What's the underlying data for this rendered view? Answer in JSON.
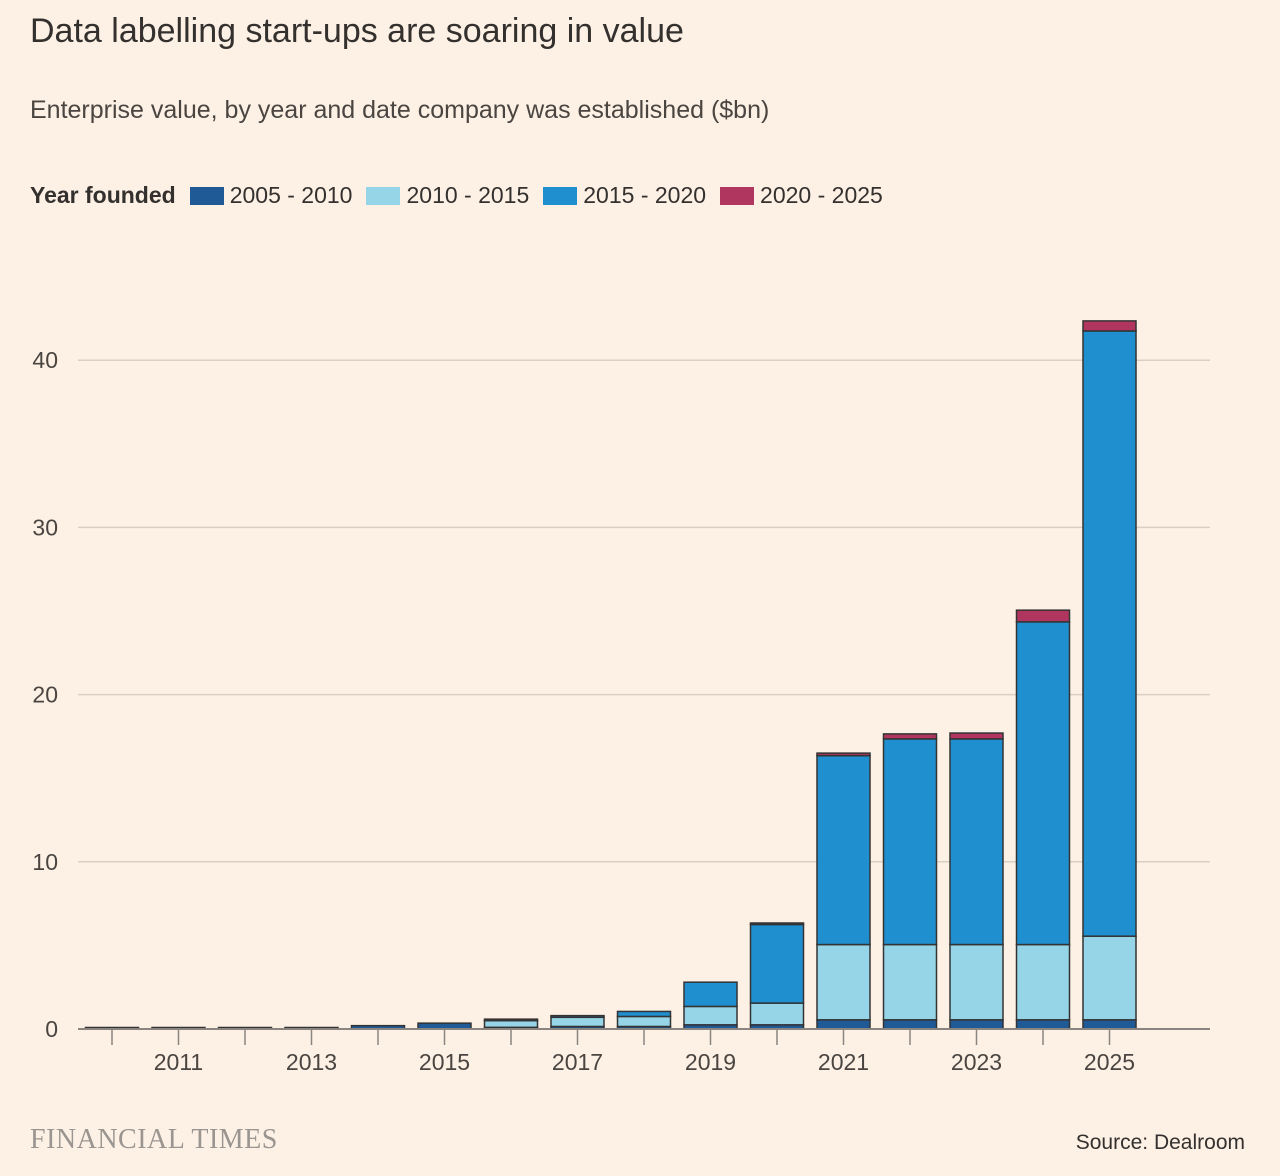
{
  "title": "Data labelling start-ups are soaring in value",
  "subtitle": "Enterprise value, by year and date company was established ($bn)",
  "legend_title": "Year founded",
  "footer_logo": "FINANCIAL TIMES",
  "source": "Source: Dealroom",
  "chart_data": {
    "type": "bar",
    "stacked": true,
    "title": "Data labelling start-ups are soaring in value",
    "ylabel": "$bn",
    "ylim": [
      0,
      44
    ],
    "yticks": [
      0,
      10,
      20,
      30,
      40
    ],
    "grid": true,
    "legend_position": "top-left",
    "categories": [
      2010,
      2011,
      2012,
      2013,
      2014,
      2015,
      2016,
      2017,
      2018,
      2019,
      2020,
      2021,
      2022,
      2023,
      2024,
      2025
    ],
    "xtick_labels": [
      "2011",
      "2013",
      "2015",
      "2017",
      "2019",
      "2021",
      "2023",
      "2025"
    ],
    "series": [
      {
        "name": "2005 - 2010",
        "color": "#1f5a96",
        "values": [
          0.05,
          0.05,
          0.05,
          0.05,
          0.2,
          0.35,
          0.1,
          0.15,
          0.15,
          0.25,
          0.25,
          0.55,
          0.55,
          0.55,
          0.55,
          0.55
        ]
      },
      {
        "name": "2010 - 2015",
        "color": "#96d4e8",
        "values": [
          0,
          0,
          0,
          0,
          0,
          0,
          0.4,
          0.55,
          0.6,
          1.1,
          1.3,
          4.5,
          4.5,
          4.5,
          4.5,
          5.0
        ]
      },
      {
        "name": "2015 - 2020",
        "color": "#1f8fcf",
        "values": [
          0,
          0,
          0,
          0,
          0,
          0,
          0.05,
          0.1,
          0.3,
          1.45,
          4.7,
          11.3,
          12.3,
          12.3,
          19.3,
          36.2
        ]
      },
      {
        "name": "2020 - 2025",
        "color": "#b0365f",
        "values": [
          0,
          0,
          0,
          0,
          0,
          0,
          0,
          0,
          0,
          0,
          0.05,
          0.15,
          0.3,
          0.35,
          0.7,
          0.6
        ]
      }
    ]
  }
}
